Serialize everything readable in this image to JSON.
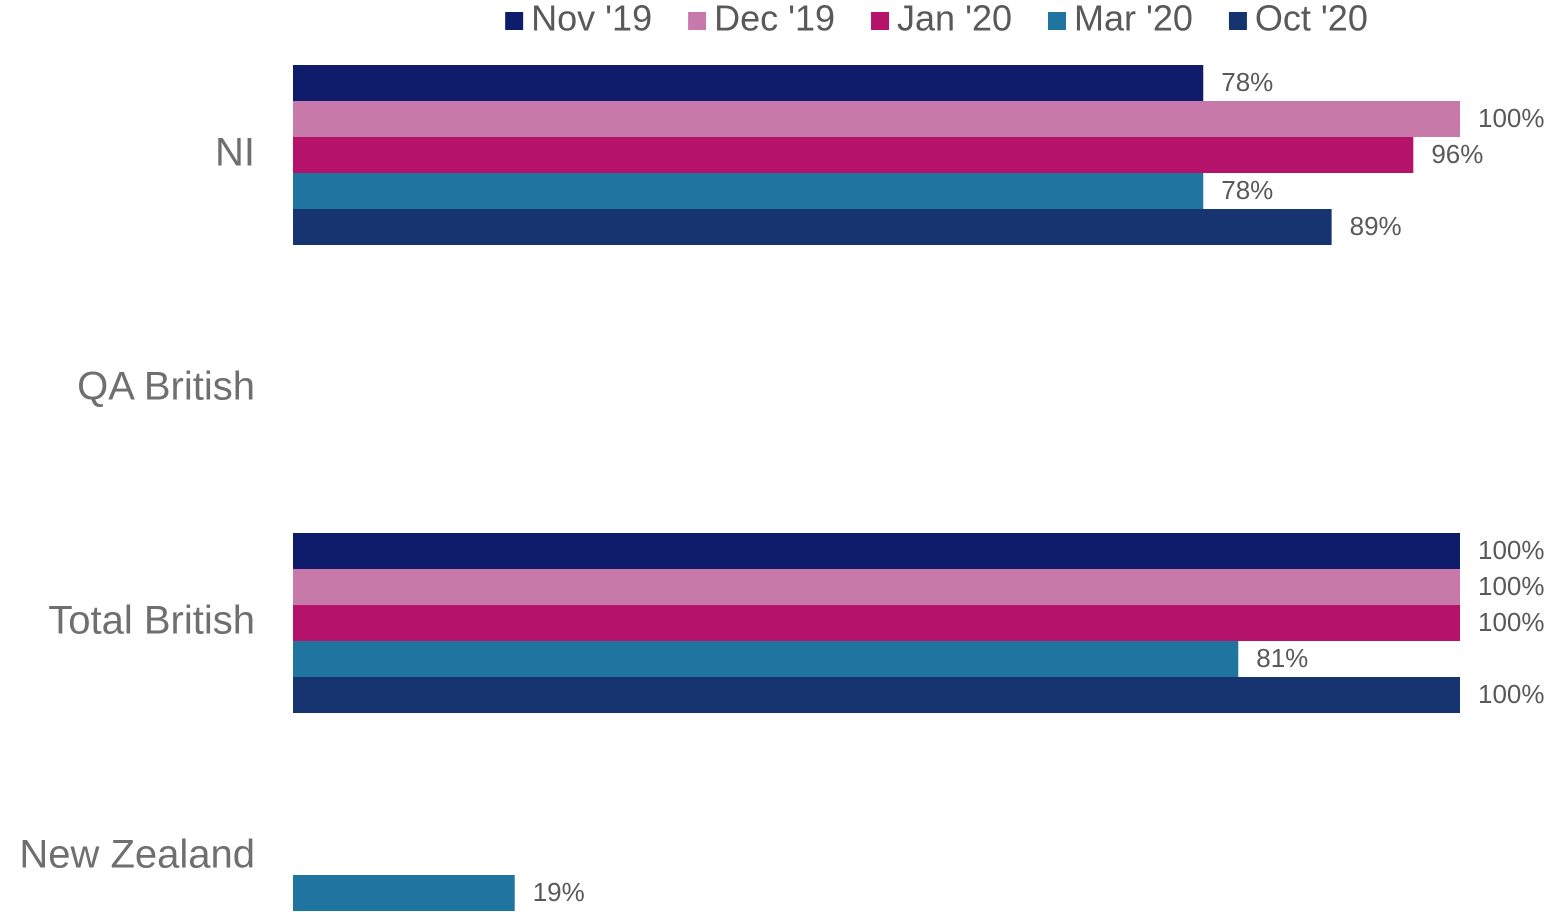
{
  "chart_data": {
    "type": "bar",
    "orientation": "horizontal",
    "categories": [
      "NI",
      "QA British",
      "Total British",
      "New Zealand"
    ],
    "xlim": [
      0,
      100
    ],
    "legend": "top",
    "series": [
      {
        "name": "Nov '19",
        "color": "#0f1c6b",
        "values": [
          78,
          null,
          100,
          null
        ],
        "value_labels": [
          "78%",
          null,
          "100%",
          null
        ]
      },
      {
        "name": "Dec '19",
        "color": "#c77aaa",
        "values": [
          100,
          null,
          100,
          null
        ],
        "value_labels": [
          "100%",
          null,
          "100%",
          null
        ]
      },
      {
        "name": "Jan '20",
        "color": "#b5136b",
        "values": [
          96,
          null,
          100,
          null
        ],
        "value_labels": [
          "96%",
          null,
          "100%",
          null
        ]
      },
      {
        "name": "Mar '20",
        "color": "#2074a0",
        "values": [
          78,
          null,
          81,
          19
        ],
        "value_labels": [
          "78%",
          null,
          "81%",
          "19%"
        ]
      },
      {
        "name": "Oct '20",
        "color": "#163570",
        "values": [
          89,
          null,
          100,
          null
        ],
        "value_labels": [
          "89%",
          null,
          "100%",
          null
        ]
      }
    ]
  }
}
